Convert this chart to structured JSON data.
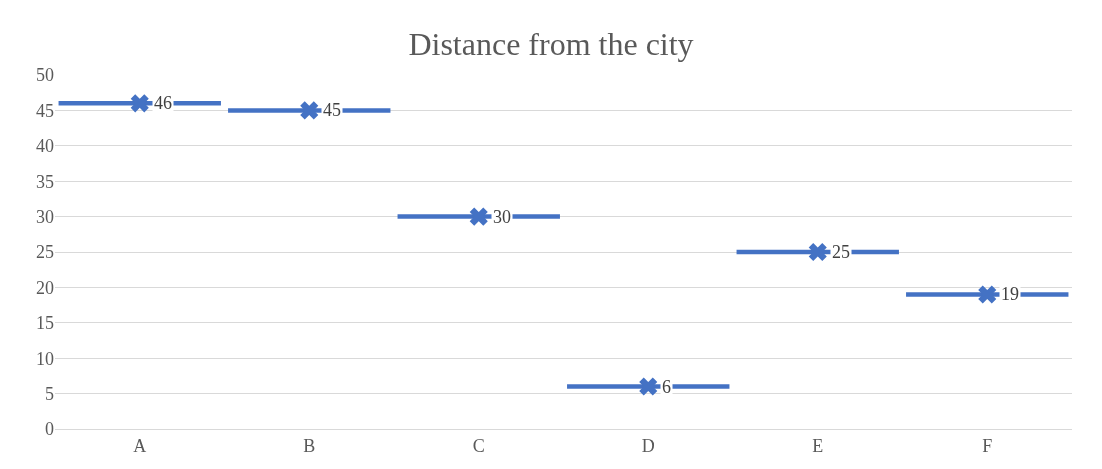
{
  "chart_data": {
    "type": "scatter",
    "title": "Distance from the city",
    "categories": [
      "A",
      "B",
      "C",
      "D",
      "E",
      "F"
    ],
    "values": [
      46,
      45,
      30,
      6,
      25,
      19
    ],
    "color": "#4472c4",
    "marker": "cross",
    "data_labels": true,
    "ylim": [
      0,
      50
    ],
    "yticks": [
      0,
      5,
      10,
      15,
      20,
      25,
      30,
      35,
      40,
      45,
      50
    ],
    "grid": "y"
  }
}
